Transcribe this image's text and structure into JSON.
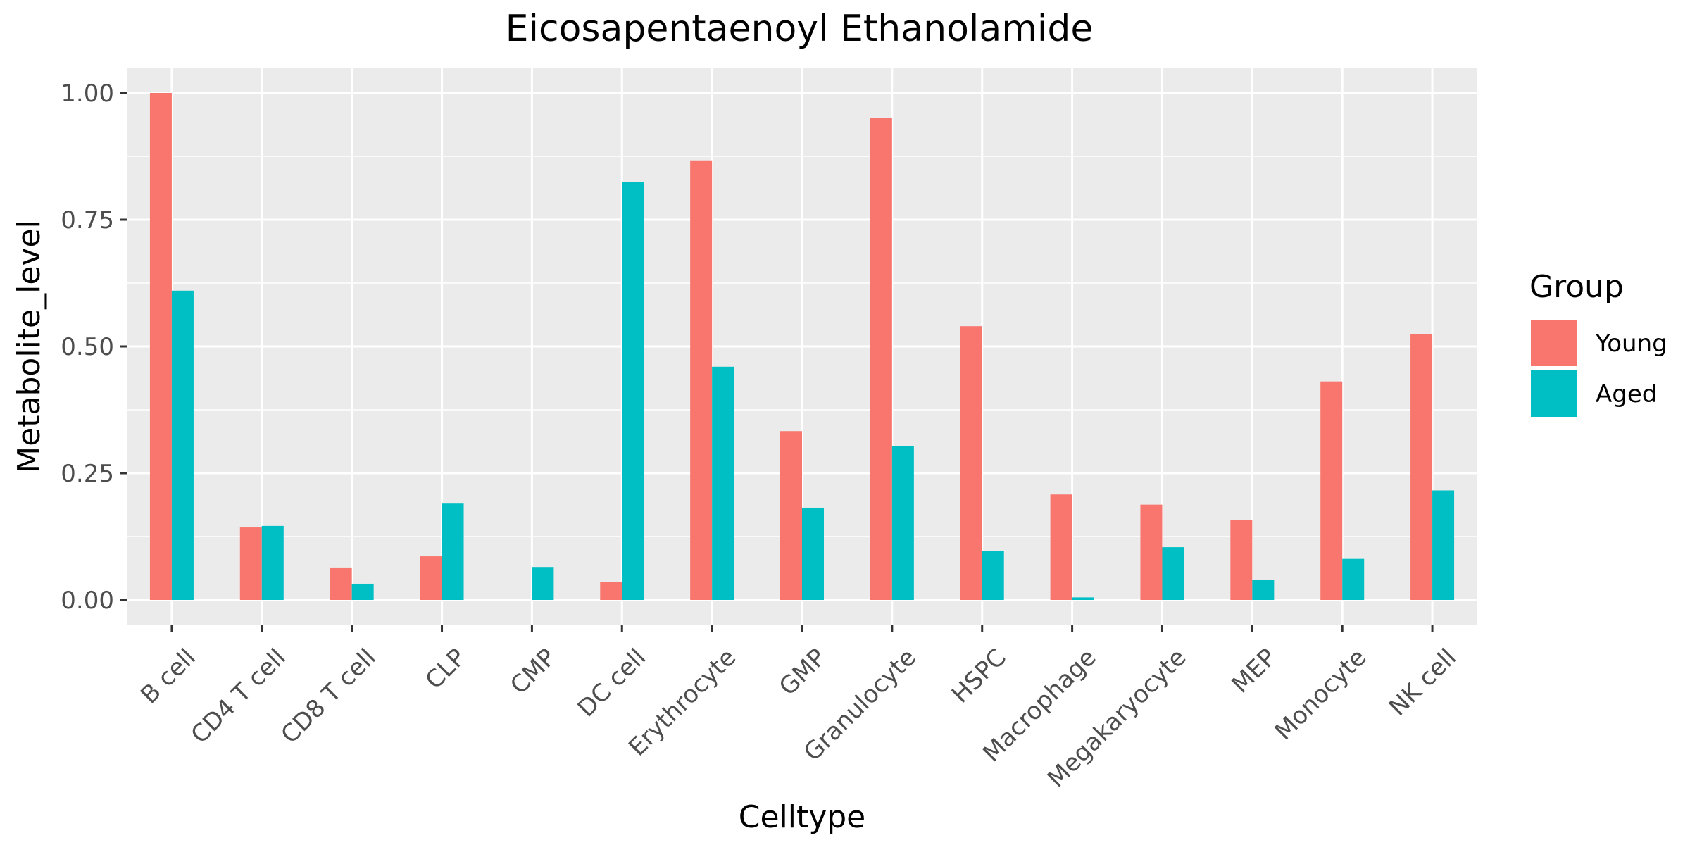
{
  "chart_data": {
    "type": "bar",
    "title": "Eicosapentaenoyl Ethanolamide",
    "xlabel": "Celltype",
    "ylabel": "Metabolite_level",
    "ylim": [
      -0.05,
      1.05
    ],
    "yticks": [
      0.0,
      0.25,
      0.5,
      0.75,
      1.0
    ],
    "ytick_labels": [
      "0.00",
      "0.25",
      "0.50",
      "0.75",
      "1.00"
    ],
    "grid": true,
    "legend_position": "right",
    "legend_title": "Group",
    "categories": [
      "B cell",
      "CD4 T cell",
      "CD8 T cell",
      "CLP",
      "CMP",
      "DC cell",
      "Erythrocyte",
      "GMP",
      "Granulocyte",
      "HSPC",
      "Macrophage",
      "Megakaryocyte",
      "MEP",
      "Monocyte",
      "NK cell"
    ],
    "series": [
      {
        "name": "Young",
        "color": "#F8766D",
        "values": [
          1.0,
          0.143,
          0.064,
          0.086,
          0.0,
          0.036,
          0.867,
          0.333,
          0.95,
          0.54,
          0.208,
          0.188,
          0.157,
          0.431,
          0.525
        ]
      },
      {
        "name": "Aged",
        "color": "#00BFC4",
        "values": [
          0.61,
          0.146,
          0.032,
          0.19,
          0.065,
          0.825,
          0.46,
          0.182,
          0.303,
          0.097,
          0.005,
          0.104,
          0.039,
          0.081,
          0.216
        ]
      }
    ]
  },
  "style": {
    "panel_background": "#EBEBEB",
    "grid_color": "#FFFFFF",
    "tick_color": "#333333"
  }
}
